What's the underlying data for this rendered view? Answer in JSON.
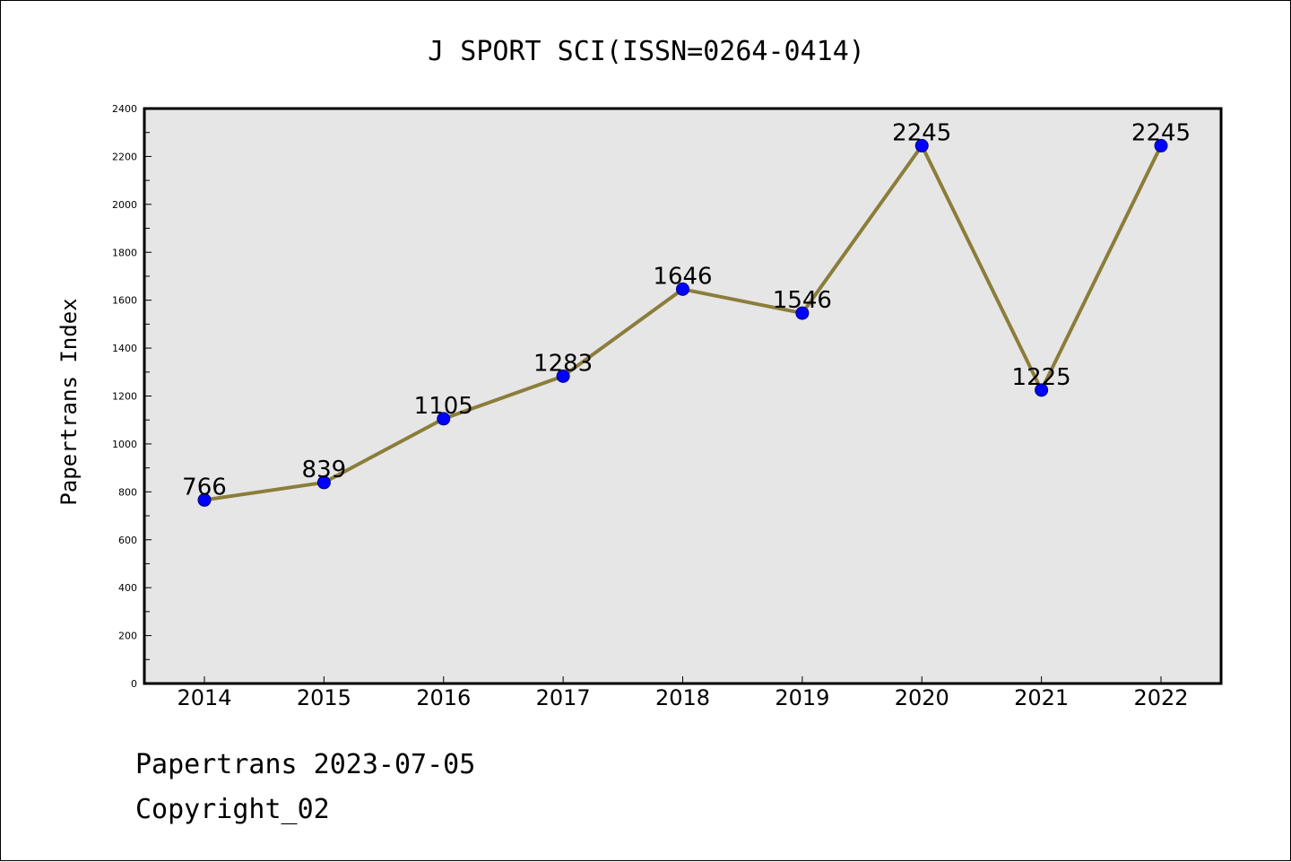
{
  "chart_data": {
    "type": "line",
    "title": "J SPORT SCI(ISSN=0264-0414)",
    "xlabel": "",
    "ylabel": "Papertrans Index",
    "categories": [
      "2014",
      "2015",
      "2016",
      "2017",
      "2018",
      "2019",
      "2020",
      "2021",
      "2022"
    ],
    "series": [
      {
        "values": [
          766,
          839,
          1105,
          1283,
          1646,
          1546,
          2245,
          1225,
          2245
        ]
      }
    ],
    "ylim": [
      0,
      2400
    ],
    "yticks": [
      0,
      200,
      400,
      600,
      800,
      1000,
      1200,
      1400,
      1600,
      1800,
      2000,
      2200,
      2400
    ],
    "grid": false,
    "legend": "none",
    "colors": {
      "plot_background": "#e6e6e6",
      "line": "#8b7d3a",
      "marker": "#0000ff",
      "marker_edge": "#000080"
    }
  },
  "footer": {
    "date_text": "Papertrans 2023-07-05",
    "copyright_text": "Copyright_02"
  }
}
